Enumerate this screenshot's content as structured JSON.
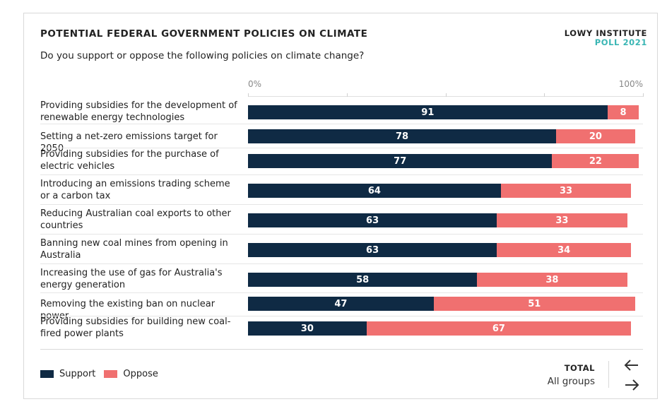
{
  "header": {
    "title": "POTENTIAL FEDERAL GOVERNMENT POLICIES ON CLIMATE",
    "subtitle": "Do you support or oppose the following policies on climate change?",
    "brand_line1": "LOWY INSTITUTE",
    "brand_line2": "POLL 2021"
  },
  "controls": {
    "group_title": "TOTAL",
    "group_name": "All groups",
    "prev_icon": "arrow-left-icon",
    "next_icon": "arrow-right-icon"
  },
  "chart_data": {
    "type": "bar",
    "orientation": "horizontal",
    "stacked": true,
    "xlim": [
      0,
      100
    ],
    "tick_labels": [
      "0%",
      "100%"
    ],
    "categories": [
      "Providing subsidies for the development of renewable energy technologies",
      "Setting a net-zero emissions target for 2050",
      "Providing subsidies for the purchase of electric vehicles",
      "Introducing an emissions trading scheme or a carbon tax",
      "Reducing Australian coal exports to other countries",
      "Banning new coal mines from opening in Australia",
      "Increasing the use of gas for Australia's energy generation",
      "Removing the existing ban on nuclear power",
      "Providing subsidies for building new coal-fired power plants"
    ],
    "series": [
      {
        "name": "Support",
        "color": "#0f2a44",
        "values": [
          91,
          78,
          77,
          64,
          63,
          63,
          58,
          47,
          30
        ]
      },
      {
        "name": "Oppose",
        "color": "#f07070",
        "values": [
          8,
          20,
          22,
          33,
          33,
          34,
          38,
          51,
          67
        ]
      }
    ],
    "legend": "bottom-left"
  }
}
